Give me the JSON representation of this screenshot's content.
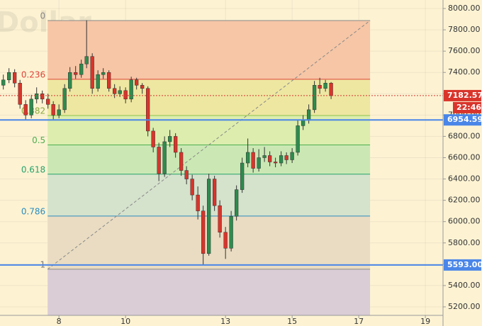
{
  "chart_data": {
    "type": "candlestick",
    "watermark": "Dollar",
    "xlim": [
      6.23,
      19.53
    ],
    "xticks": [
      8,
      10,
      13,
      15,
      17,
      19
    ],
    "ylim": [
      5120,
      8080
    ],
    "yticks": [
      {
        "value": 5200,
        "label": "5200.00"
      },
      {
        "value": 5400,
        "label": "5400.00"
      },
      {
        "value": 5600,
        "label": "5600.00"
      },
      {
        "value": 5800,
        "label": "5800.00"
      },
      {
        "value": 6000,
        "label": "6000.00"
      },
      {
        "value": 6200,
        "label": "6200.00"
      },
      {
        "value": 6400,
        "label": "6400.00"
      },
      {
        "value": 6600,
        "label": "6600.00"
      },
      {
        "value": 6800,
        "label": "6800.00"
      },
      {
        "value": 7000,
        "label": "7000.00"
      },
      {
        "value": 7200,
        "label": "7200.00"
      },
      {
        "value": 7400,
        "label": "7400.00"
      },
      {
        "value": 7600,
        "label": "7600.00"
      },
      {
        "value": 7800,
        "label": "7800.00"
      },
      {
        "value": 8000,
        "label": "8000.00"
      }
    ],
    "grid": true,
    "up_color": "#2e8b4e",
    "down_color": "#d9342b",
    "x": [
      6.33,
      6.5,
      6.67,
      6.83,
      7,
      7.17,
      7.33,
      7.5,
      7.67,
      7.83,
      8,
      8.17,
      8.33,
      8.5,
      8.67,
      8.83,
      9,
      9.17,
      9.33,
      9.5,
      9.67,
      9.83,
      10,
      10.17,
      10.33,
      10.5,
      10.67,
      10.83,
      11,
      11.17,
      11.33,
      11.5,
      11.67,
      11.83,
      12,
      12.17,
      12.33,
      12.5,
      12.67,
      12.83,
      13,
      13.17,
      13.33,
      13.5,
      13.67,
      13.83,
      14,
      14.17,
      14.33,
      14.5,
      14.67,
      14.83,
      15,
      15.17,
      15.33,
      15.5,
      15.67,
      15.83,
      16,
      16.17
    ],
    "open": [
      7280,
      7330,
      7400,
      7300,
      7100,
      7000,
      7150,
      7200,
      7150,
      7100,
      7000,
      7050,
      7250,
      7400,
      7380,
      7480,
      7550,
      7250,
      7380,
      7400,
      7250,
      7200,
      7230,
      7150,
      7330,
      7280,
      7250,
      6850,
      6700,
      6450,
      6750,
      6800,
      6650,
      6480,
      6400,
      6250,
      6100,
      5700,
      6400,
      6150,
      5900,
      5750,
      6050,
      6300,
      6550,
      6650,
      6500,
      6600,
      6620,
      6560,
      6550,
      6620,
      6580,
      6650,
      6900,
      6950,
      7050,
      7280,
      7250,
      7300
    ],
    "high": [
      7380,
      7440,
      7430,
      7330,
      7140,
      7190,
      7260,
      7230,
      7200,
      7130,
      7100,
      7290,
      7450,
      7460,
      7520,
      7890,
      7580,
      7420,
      7440,
      7420,
      7290,
      7270,
      7260,
      7360,
      7350,
      7300,
      7270,
      6880,
      6740,
      6800,
      6860,
      6830,
      6690,
      6520,
      6440,
      6330,
      6150,
      6450,
      6430,
      6200,
      5950,
      6100,
      6340,
      6600,
      6780,
      6690,
      6680,
      6700,
      6660,
      6600,
      6660,
      6650,
      6690,
      6950,
      7000,
      7100,
      7320,
      7350,
      7330,
      7310
    ],
    "low": [
      7240,
      7300,
      7260,
      7060,
      6950,
      6970,
      7110,
      7110,
      7060,
      6960,
      6970,
      7020,
      7220,
      7340,
      7350,
      7440,
      7200,
      7220,
      7340,
      7220,
      7160,
      7170,
      7110,
      7120,
      7240,
      7200,
      6800,
      6650,
      6380,
      6420,
      6700,
      6600,
      6430,
      6350,
      6200,
      6020,
      5593,
      5680,
      6100,
      5850,
      5650,
      5720,
      6010,
      6270,
      6510,
      6460,
      6470,
      6560,
      6520,
      6510,
      6520,
      6540,
      6550,
      6620,
      6860,
      6920,
      7020,
      7200,
      7220,
      7150
    ],
    "close": [
      7330,
      7400,
      7300,
      7100,
      7000,
      7150,
      7200,
      7150,
      7100,
      7000,
      7050,
      7250,
      7400,
      7380,
      7480,
      7550,
      7250,
      7380,
      7400,
      7250,
      7200,
      7230,
      7150,
      7330,
      7280,
      7250,
      6850,
      6700,
      6450,
      6750,
      6800,
      6650,
      6480,
      6400,
      6250,
      6100,
      5700,
      6400,
      6150,
      5900,
      5750,
      6050,
      6300,
      6550,
      6650,
      6500,
      6600,
      6620,
      6560,
      6550,
      6620,
      6580,
      6650,
      6900,
      6950,
      7050,
      7280,
      7250,
      7300,
      7182.57
    ],
    "fib_x": [
      7.66,
      17.34
    ],
    "fib_levels": [
      {
        "label": "0",
        "price": 7887,
        "color": "#888888",
        "label_color": "#888888",
        "zone_color": "#f6c6a6"
      },
      {
        "label": "0.236",
        "price": 7336,
        "color": "#e0433a",
        "label_color": "#e0433a",
        "zone_color": "#eee7a2"
      },
      {
        "label": "0.382",
        "price": 6996,
        "color": "#8bc34a",
        "label_color": "#8aa83a",
        "zone_color": "#dcedae"
      },
      {
        "label": "0.5",
        "price": 6720,
        "color": "#4caf50",
        "label_color": "#4caf50",
        "zone_color": "#cbe8b4"
      },
      {
        "label": "0.618",
        "price": 6445,
        "color": "#26a269",
        "label_color": "#26a269",
        "zone_color": "#d5e2cc"
      },
      {
        "label": "0.786",
        "price": 6052,
        "color": "#2b8cbe",
        "label_color": "#2b8cbe",
        "zone_color": "#e9dcc2"
      },
      {
        "label": "1",
        "price": 5553,
        "color": "#888888",
        "label_color": "#777777",
        "zone_color": "#dacdd6"
      }
    ],
    "horizontal_lines": [
      {
        "value": 6954.59,
        "label": "6954.59",
        "color": "#4a86e8"
      },
      {
        "value": 5593,
        "label": "5593.00",
        "color": "#4a86e8"
      }
    ],
    "current_price": {
      "value": 7182.57,
      "label": "7182.57",
      "countdown": "22:46",
      "color": "#d9342b"
    }
  }
}
